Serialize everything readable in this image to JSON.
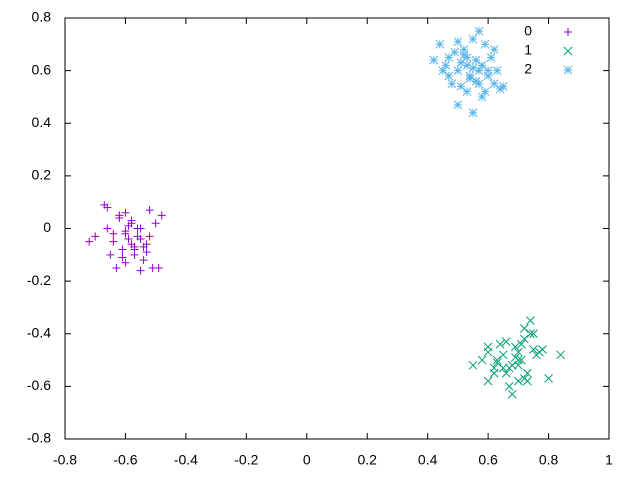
{
  "chart_data": {
    "type": "scatter",
    "xlim": [
      -0.8,
      1
    ],
    "ylim": [
      -0.8,
      0.8
    ],
    "xticks": [
      -0.8,
      -0.6,
      -0.4,
      -0.2,
      0,
      0.2,
      0.4,
      0.6,
      0.8,
      1
    ],
    "yticks": [
      -0.8,
      -0.6,
      -0.4,
      -0.2,
      0,
      0.2,
      0.4,
      0.6,
      0.8
    ],
    "legend": "top-right",
    "series": [
      {
        "name": "0",
        "color": "#9400d3",
        "marker": "plus",
        "x": [
          -0.67,
          -0.62,
          -0.58,
          -0.55,
          -0.6,
          -0.52,
          -0.5,
          -0.64,
          -0.56,
          -0.61,
          -0.57,
          -0.53,
          -0.66,
          -0.59,
          -0.54,
          -0.48,
          -0.63,
          -0.6,
          -0.57,
          -0.51,
          -0.72,
          -0.7,
          -0.65,
          -0.55,
          -0.58,
          -0.62,
          -0.49,
          -0.53,
          -0.6,
          -0.56,
          -0.64,
          -0.59,
          -0.57,
          -0.52,
          -0.66,
          -0.61,
          -0.55,
          -0.58,
          -0.54,
          -0.6
        ],
        "y": [
          0.09,
          0.05,
          0.03,
          0.0,
          -0.02,
          0.07,
          0.02,
          -0.05,
          -0.03,
          -0.08,
          -0.1,
          -0.06,
          0.0,
          0.01,
          -0.12,
          0.05,
          -0.15,
          -0.13,
          -0.07,
          -0.15,
          -0.05,
          -0.03,
          -0.1,
          -0.04,
          -0.06,
          0.04,
          -0.15,
          -0.09,
          0.06,
          0.0,
          -0.02,
          -0.04,
          -0.08,
          -0.03,
          0.08,
          -0.11,
          -0.16,
          0.02,
          -0.07,
          -0.01
        ]
      },
      {
        "name": "1",
        "color": "#009e73",
        "marker": "cross",
        "x": [
          0.6,
          0.65,
          0.7,
          0.72,
          0.68,
          0.75,
          0.66,
          0.63,
          0.7,
          0.74,
          0.77,
          0.62,
          0.69,
          0.71,
          0.64,
          0.73,
          0.67,
          0.76,
          0.58,
          0.8,
          0.84,
          0.55,
          0.6,
          0.7,
          0.72,
          0.65,
          0.68,
          0.74,
          0.62,
          0.7,
          0.66,
          0.72,
          0.78,
          0.69,
          0.63,
          0.71,
          0.75,
          0.67,
          0.6,
          0.73
        ],
        "y": [
          -0.45,
          -0.48,
          -0.5,
          -0.42,
          -0.52,
          -0.46,
          -0.55,
          -0.5,
          -0.58,
          -0.4,
          -0.47,
          -0.53,
          -0.45,
          -0.5,
          -0.44,
          -0.55,
          -0.6,
          -0.48,
          -0.5,
          -0.57,
          -0.48,
          -0.52,
          -0.58,
          -0.47,
          -0.38,
          -0.53,
          -0.63,
          -0.35,
          -0.55,
          -0.52,
          -0.43,
          -0.57,
          -0.46,
          -0.49,
          -0.51,
          -0.44,
          -0.4,
          -0.53,
          -0.47,
          -0.58
        ]
      },
      {
        "name": "2",
        "color": "#56b4e9",
        "marker": "star",
        "x": [
          0.44,
          0.47,
          0.5,
          0.52,
          0.55,
          0.58,
          0.6,
          0.62,
          0.48,
          0.53,
          0.56,
          0.59,
          0.45,
          0.51,
          0.54,
          0.57,
          0.61,
          0.64,
          0.42,
          0.5,
          0.55,
          0.58,
          0.52,
          0.6,
          0.47,
          0.56,
          0.53,
          0.49,
          0.63,
          0.57,
          0.51,
          0.54,
          0.59,
          0.46,
          0.62,
          0.55,
          0.5,
          0.57,
          0.65,
          0.53
        ],
        "y": [
          0.7,
          0.65,
          0.6,
          0.68,
          0.72,
          0.62,
          0.58,
          0.55,
          0.55,
          0.52,
          0.64,
          0.7,
          0.6,
          0.63,
          0.57,
          0.6,
          0.65,
          0.53,
          0.64,
          0.47,
          0.44,
          0.5,
          0.66,
          0.6,
          0.58,
          0.56,
          0.62,
          0.67,
          0.6,
          0.75,
          0.54,
          0.58,
          0.52,
          0.62,
          0.68,
          0.61,
          0.71,
          0.55,
          0.54,
          0.65
        ]
      }
    ]
  }
}
